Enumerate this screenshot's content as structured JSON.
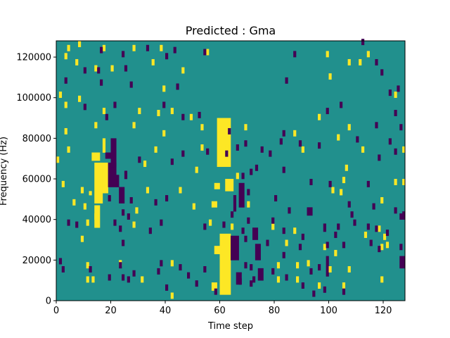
{
  "chart_data": {
    "type": "heatmap",
    "title": "Predicted : Gma",
    "xlabel": "Time step",
    "ylabel": "Frequency (Hz)",
    "xlim": [
      0,
      128
    ],
    "ylim": [
      0,
      128000
    ],
    "x_ticks": [
      0,
      20,
      40,
      60,
      80,
      100,
      120
    ],
    "y_ticks": [
      0,
      20000,
      40000,
      60000,
      80000,
      100000,
      120000
    ],
    "x_tick_labels": [
      "0",
      "20",
      "40",
      "60",
      "80",
      "100",
      "120"
    ],
    "y_tick_labels": [
      "0",
      "20000",
      "40000",
      "60000",
      "80000",
      "100000",
      "120000"
    ],
    "rows": 128,
    "cols": 128,
    "colormap": {
      "background": "#21908d",
      "high": "#fde725",
      "low": "#440154"
    },
    "segments": [
      [
        60,
        3,
        64,
        33,
        "high"
      ],
      [
        59,
        66,
        64,
        90,
        "high"
      ],
      [
        62,
        54,
        65,
        60,
        "high"
      ],
      [
        58,
        23,
        60,
        27,
        "high"
      ],
      [
        57,
        5,
        59,
        9,
        "high"
      ],
      [
        57,
        46,
        59,
        49,
        "high"
      ],
      [
        58,
        55,
        60,
        58,
        "high"
      ],
      [
        14,
        48,
        17,
        68,
        "high"
      ],
      [
        17,
        53,
        19,
        68,
        "high"
      ],
      [
        13,
        69,
        16,
        73,
        "high"
      ],
      [
        14,
        36,
        16,
        47,
        "high"
      ],
      [
        17,
        73,
        18,
        80,
        "high"
      ],
      [
        12,
        52,
        13,
        54,
        "high"
      ],
      [
        19,
        56,
        22,
        68,
        "low"
      ],
      [
        20,
        66,
        22,
        80,
        "low"
      ],
      [
        18,
        70,
        20,
        73,
        "low"
      ],
      [
        22,
        56,
        23,
        62,
        "low"
      ],
      [
        23,
        48,
        25,
        56,
        "low"
      ],
      [
        25,
        60,
        26,
        64,
        "low"
      ],
      [
        64,
        20,
        67,
        32,
        "low"
      ],
      [
        65,
        44,
        66,
        52,
        "low"
      ],
      [
        67,
        46,
        69,
        58,
        "low"
      ],
      [
        66,
        8,
        68,
        14,
        "low"
      ],
      [
        73,
        20,
        75,
        28,
        "low"
      ],
      [
        74,
        10,
        76,
        16,
        "low"
      ],
      [
        92,
        42,
        94,
        46,
        "low"
      ],
      [
        99,
        12,
        100,
        22,
        "low"
      ],
      [
        98,
        34,
        99,
        38,
        "low"
      ],
      [
        126,
        16,
        128,
        22,
        "low"
      ],
      [
        127,
        40,
        128,
        44,
        "low"
      ],
      [
        72,
        30,
        74,
        36,
        "low"
      ]
    ],
    "points": [
      [
        8,
        125,
        "high"
      ],
      [
        4,
        123,
        "high"
      ],
      [
        17,
        123,
        "high"
      ],
      [
        28,
        123,
        "high"
      ],
      [
        38,
        123,
        "high"
      ],
      [
        55,
        121,
        "high"
      ],
      [
        3,
        119,
        "high"
      ],
      [
        99,
        120,
        "high"
      ],
      [
        114,
        120,
        "high"
      ],
      [
        7,
        116,
        "high"
      ],
      [
        35,
        116,
        "high"
      ],
      [
        107,
        116,
        "high"
      ],
      [
        111,
        116,
        "high"
      ],
      [
        14,
        113,
        "high"
      ],
      [
        20,
        113,
        "high"
      ],
      [
        46,
        112,
        "high"
      ],
      [
        100,
        109,
        "high"
      ],
      [
        39,
        103,
        "high"
      ],
      [
        1,
        100,
        "high"
      ],
      [
        8,
        98,
        "high"
      ],
      [
        124,
        100,
        "high"
      ],
      [
        3,
        95,
        "high"
      ],
      [
        42,
        92,
        "high"
      ],
      [
        17,
        92,
        "high"
      ],
      [
        30,
        92,
        "high"
      ],
      [
        37,
        91,
        "high"
      ],
      [
        49,
        89,
        "high"
      ],
      [
        96,
        89,
        "high"
      ],
      [
        3,
        82,
        "high"
      ],
      [
        53,
        84,
        "high"
      ],
      [
        14,
        85,
        "high"
      ],
      [
        28,
        85,
        "high"
      ],
      [
        69,
        84,
        "high"
      ],
      [
        107,
        84,
        "high"
      ],
      [
        39,
        81,
        "high"
      ],
      [
        87,
        81,
        "high"
      ],
      [
        103,
        79,
        "high"
      ],
      [
        4,
        73,
        "high"
      ],
      [
        36,
        73,
        "high"
      ],
      [
        53,
        74,
        "high"
      ],
      [
        62,
        74,
        "high"
      ],
      [
        90,
        73,
        "high"
      ],
      [
        112,
        73,
        "high"
      ],
      [
        127,
        73,
        "high"
      ],
      [
        0,
        68,
        "high"
      ],
      [
        32,
        66,
        "high"
      ],
      [
        51,
        63,
        "high"
      ],
      [
        106,
        64,
        "high"
      ],
      [
        2,
        56,
        "high"
      ],
      [
        9,
        53,
        "high"
      ],
      [
        33,
        53,
        "high"
      ],
      [
        45,
        53,
        "high"
      ],
      [
        66,
        60,
        "high"
      ],
      [
        105,
        58,
        "high"
      ],
      [
        101,
        53,
        "high"
      ],
      [
        124,
        57,
        "high"
      ],
      [
        127,
        57,
        "high"
      ],
      [
        6,
        47,
        "high"
      ],
      [
        10,
        45,
        "high"
      ],
      [
        29,
        43,
        "high"
      ],
      [
        50,
        45,
        "high"
      ],
      [
        70,
        46,
        "high"
      ],
      [
        119,
        48,
        "high"
      ],
      [
        104,
        52,
        "high"
      ],
      [
        11,
        37,
        "high"
      ],
      [
        14,
        40,
        "high"
      ],
      [
        28,
        36,
        "high"
      ],
      [
        56,
        37,
        "high"
      ],
      [
        64,
        35,
        "high"
      ],
      [
        79,
        35,
        "high"
      ],
      [
        87,
        33,
        "high"
      ],
      [
        118,
        34,
        "high"
      ],
      [
        120,
        30,
        "high"
      ],
      [
        113,
        31,
        "high"
      ],
      [
        9,
        29,
        "high"
      ],
      [
        84,
        27,
        "high"
      ],
      [
        119,
        25,
        "high"
      ],
      [
        121,
        26,
        "high"
      ],
      [
        98,
        25,
        "high"
      ],
      [
        102,
        22,
        "high"
      ],
      [
        11,
        16,
        "high"
      ],
      [
        23,
        17,
        "high"
      ],
      [
        42,
        17,
        "high"
      ],
      [
        81,
        16,
        "high"
      ],
      [
        88,
        16,
        "high"
      ],
      [
        92,
        17,
        "high"
      ],
      [
        107,
        14,
        "high"
      ],
      [
        100,
        14,
        "high"
      ],
      [
        119,
        9,
        "high"
      ],
      [
        11,
        9,
        "high"
      ],
      [
        13,
        9,
        "high"
      ],
      [
        31,
        9,
        "high"
      ],
      [
        81,
        9,
        "high"
      ],
      [
        88,
        9,
        "high"
      ],
      [
        105,
        6,
        "high"
      ],
      [
        42,
        1,
        "high"
      ],
      [
        96,
        6,
        "high"
      ],
      [
        112,
        126,
        "low"
      ],
      [
        16,
        122,
        "low"
      ],
      [
        33,
        123,
        "low"
      ],
      [
        24,
        120,
        "low"
      ],
      [
        43,
        122,
        "low"
      ],
      [
        87,
        120,
        "low"
      ],
      [
        40,
        119,
        "low"
      ],
      [
        54,
        121,
        "low"
      ],
      [
        117,
        116,
        "low"
      ],
      [
        119,
        111,
        "low"
      ],
      [
        10,
        112,
        "low"
      ],
      [
        15,
        112,
        "low"
      ],
      [
        25,
        113,
        "low"
      ],
      [
        84,
        107,
        "low"
      ],
      [
        3,
        107,
        "low"
      ],
      [
        16,
        106,
        "low"
      ],
      [
        27,
        105,
        "low"
      ],
      [
        44,
        104,
        "low"
      ],
      [
        125,
        103,
        "low"
      ],
      [
        122,
        101,
        "low"
      ],
      [
        10,
        94,
        "low"
      ],
      [
        21,
        95,
        "low"
      ],
      [
        39,
        95,
        "low"
      ],
      [
        104,
        95,
        "low"
      ],
      [
        99,
        92,
        "low"
      ],
      [
        124,
        91,
        "low"
      ],
      [
        18,
        89,
        "low"
      ],
      [
        46,
        89,
        "low"
      ],
      [
        52,
        90,
        "low"
      ],
      [
        117,
        85,
        "low"
      ],
      [
        126,
        84,
        "low"
      ],
      [
        63,
        82,
        "low"
      ],
      [
        83,
        81,
        "low"
      ],
      [
        69,
        76,
        "low"
      ],
      [
        82,
        77,
        "low"
      ],
      [
        89,
        76,
        "low"
      ],
      [
        96,
        75,
        "low"
      ],
      [
        110,
        78,
        "low"
      ],
      [
        122,
        77,
        "low"
      ],
      [
        124,
        72,
        "low"
      ],
      [
        46,
        71,
        "low"
      ],
      [
        55,
        72,
        "low"
      ],
      [
        66,
        74,
        "low"
      ],
      [
        75,
        73,
        "low"
      ],
      [
        78,
        71,
        "low"
      ],
      [
        30,
        68,
        "low"
      ],
      [
        42,
        67,
        "low"
      ],
      [
        73,
        64,
        "low"
      ],
      [
        83,
        63,
        "low"
      ],
      [
        62,
        71,
        "low"
      ],
      [
        118,
        69,
        "low"
      ],
      [
        68,
        60,
        "low"
      ],
      [
        71,
        62,
        "low"
      ],
      [
        93,
        57,
        "low"
      ],
      [
        100,
        56,
        "low"
      ],
      [
        114,
        56,
        "low"
      ],
      [
        19,
        49,
        "low"
      ],
      [
        27,
        48,
        "low"
      ],
      [
        40,
        49,
        "low"
      ],
      [
        70,
        52,
        "low"
      ],
      [
        24,
        42,
        "low"
      ],
      [
        36,
        47,
        "low"
      ],
      [
        80,
        49,
        "low"
      ],
      [
        85,
        43,
        "low"
      ],
      [
        107,
        46,
        "low"
      ],
      [
        108,
        41,
        "low"
      ],
      [
        116,
        45,
        "low"
      ],
      [
        124,
        43,
        "low"
      ],
      [
        126,
        40,
        "low"
      ],
      [
        64,
        41,
        "low"
      ],
      [
        70,
        38,
        "low"
      ],
      [
        26,
        40,
        "low"
      ],
      [
        4,
        37,
        "low"
      ],
      [
        7,
        36,
        "low"
      ],
      [
        21,
        37,
        "low"
      ],
      [
        38,
        37,
        "low"
      ],
      [
        61,
        36,
        "low"
      ],
      [
        79,
        38,
        "low"
      ],
      [
        109,
        37,
        "low"
      ],
      [
        103,
        35,
        "low"
      ],
      [
        114,
        35,
        "low"
      ],
      [
        117,
        34,
        "low"
      ],
      [
        121,
        32,
        "low"
      ],
      [
        102,
        31,
        "low"
      ],
      [
        23,
        34,
        "low"
      ],
      [
        34,
        33,
        "low"
      ],
      [
        54,
        35,
        "low"
      ],
      [
        68,
        33,
        "low"
      ],
      [
        83,
        33,
        "low"
      ],
      [
        90,
        30,
        "low"
      ],
      [
        69,
        29,
        "low"
      ],
      [
        24,
        27,
        "low"
      ],
      [
        77,
        27,
        "low"
      ],
      [
        89,
        25,
        "low"
      ],
      [
        105,
        26,
        "low"
      ],
      [
        115,
        27,
        "low"
      ],
      [
        126,
        25,
        "low"
      ],
      [
        118,
        24,
        "low"
      ],
      [
        99,
        26,
        "low"
      ],
      [
        83,
        21,
        "low"
      ],
      [
        1,
        18,
        "low"
      ],
      [
        23,
        16,
        "low"
      ],
      [
        38,
        17,
        "low"
      ],
      [
        45,
        15,
        "low"
      ],
      [
        69,
        16,
        "low"
      ],
      [
        79,
        13,
        "low"
      ],
      [
        93,
        13,
        "low"
      ],
      [
        127,
        18,
        "low"
      ],
      [
        24,
        10,
        "low"
      ],
      [
        37,
        13,
        "low"
      ],
      [
        54,
        14,
        "low"
      ],
      [
        71,
        15,
        "low"
      ],
      [
        96,
        15,
        "low"
      ],
      [
        2,
        14,
        "low"
      ],
      [
        12,
        14,
        "low"
      ],
      [
        19,
        10,
        "low"
      ],
      [
        28,
        12,
        "low"
      ],
      [
        48,
        11,
        "low"
      ],
      [
        72,
        9,
        "low"
      ],
      [
        84,
        10,
        "low"
      ],
      [
        67,
        8,
        "low"
      ],
      [
        71,
        7,
        "low"
      ],
      [
        90,
        6,
        "low"
      ],
      [
        58,
        3,
        "low"
      ],
      [
        94,
        2,
        "low"
      ],
      [
        98,
        4,
        "low"
      ],
      [
        105,
        3,
        "low"
      ],
      [
        51,
        7,
        "low"
      ],
      [
        40,
        5,
        "low"
      ],
      [
        26,
        9,
        "low"
      ]
    ]
  }
}
